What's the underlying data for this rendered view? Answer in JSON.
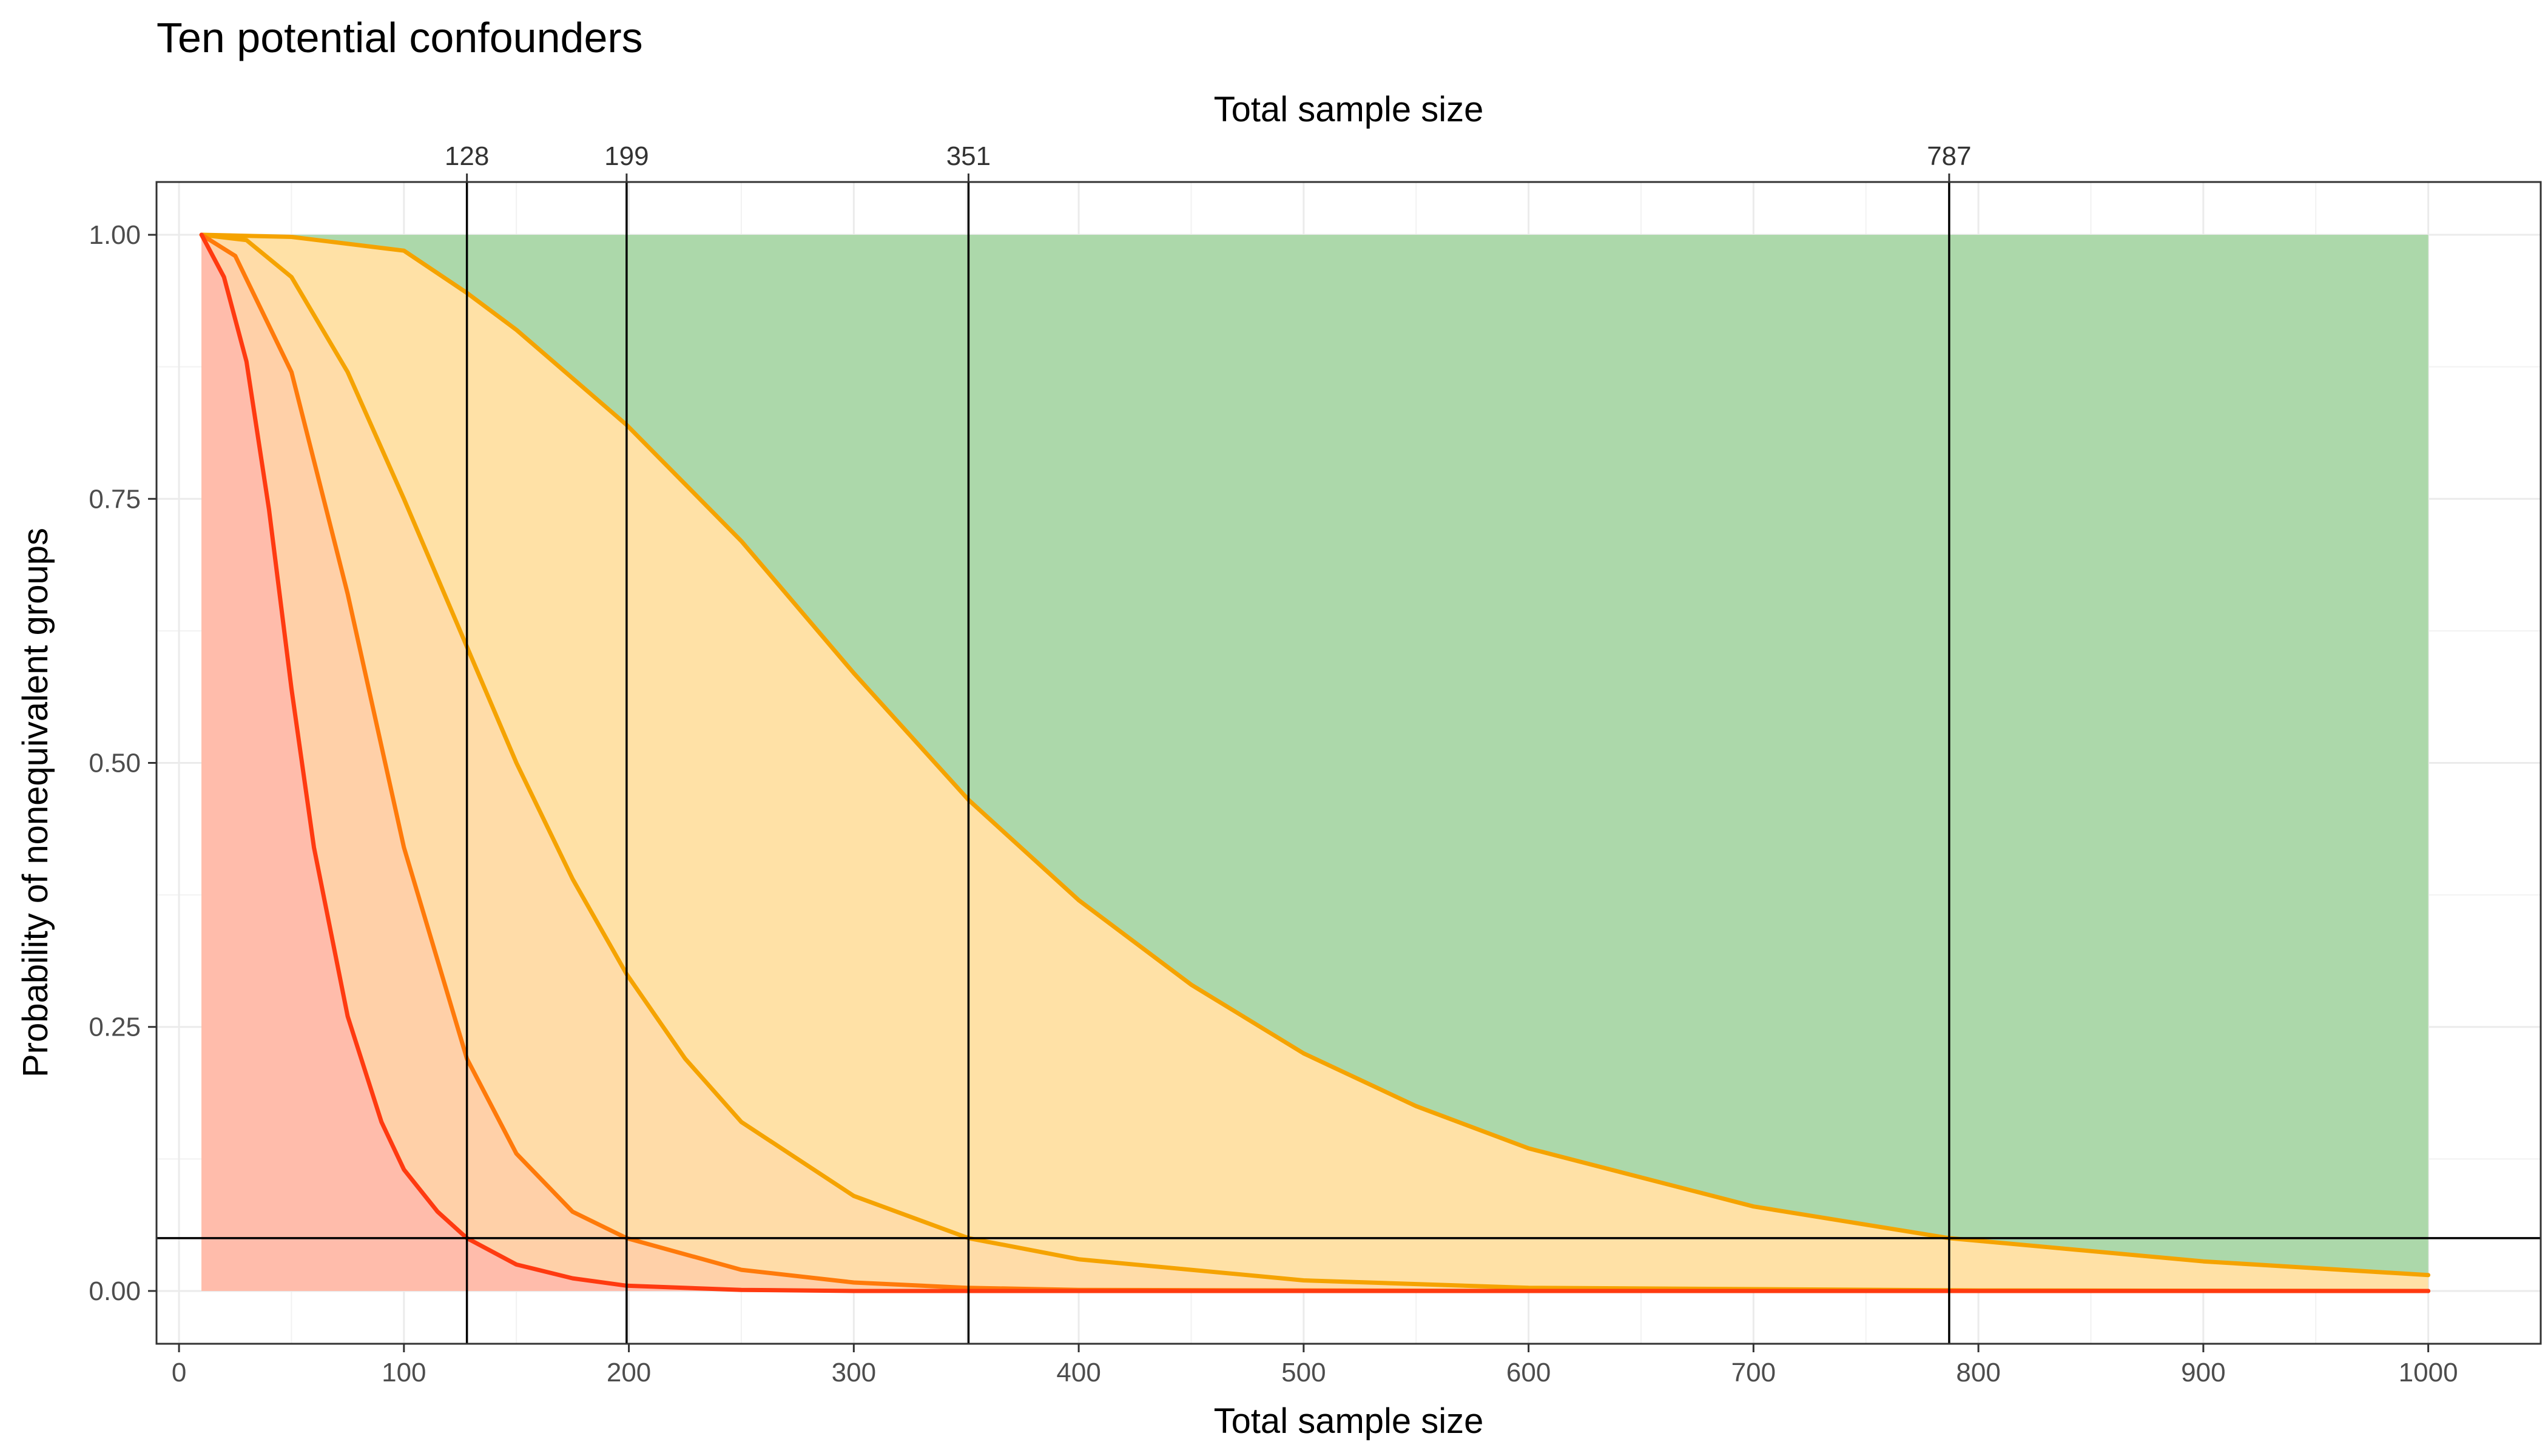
{
  "chart_data": {
    "type": "area",
    "title": "Ten potential confounders",
    "xlabel": "Total sample size",
    "ylabel": "Probability of nonequivalent groups",
    "secondary_xlabel": "Total sample size",
    "xlim": [
      -10,
      1050
    ],
    "ylim": [
      -0.05,
      1.05
    ],
    "x_ticks": [
      0,
      100,
      200,
      300,
      400,
      500,
      600,
      700,
      800,
      900,
      1000
    ],
    "x_tick_labels": [
      "0",
      "100",
      "200",
      "300",
      "400",
      "500",
      "600",
      "700",
      "800",
      "900",
      "1000"
    ],
    "y_ticks": [
      0,
      0.25,
      0.5,
      0.75,
      1
    ],
    "y_tick_labels": [
      "0.00",
      "0.25",
      "0.50",
      "0.75",
      "1.00"
    ],
    "grid": true,
    "hline": 0.05,
    "vlines": [
      128,
      199,
      351,
      787
    ],
    "vline_labels": [
      "128",
      "199",
      "351",
      "787"
    ],
    "background_region": {
      "x": [
        10,
        1000
      ],
      "y": [
        0,
        1
      ],
      "color": "#acd8aa"
    },
    "series": [
      {
        "color": "#f5a300",
        "fill": "#ffe1a6",
        "x": [
          10,
          50,
          100,
          128,
          150,
          199,
          250,
          300,
          351,
          400,
          450,
          500,
          550,
          600,
          700,
          787,
          900,
          1000
        ],
        "values": [
          1.0,
          0.998,
          0.985,
          0.945,
          0.91,
          0.82,
          0.71,
          0.585,
          0.465,
          0.37,
          0.29,
          0.225,
          0.175,
          0.135,
          0.08,
          0.05,
          0.028,
          0.015
        ]
      },
      {
        "color": "#f5a300",
        "fill": "#ffdca8",
        "x": [
          10,
          30,
          50,
          75,
          100,
          128,
          150,
          175,
          199,
          225,
          250,
          300,
          351,
          400,
          500,
          600,
          800,
          1000
        ],
        "values": [
          1.0,
          0.995,
          0.96,
          0.87,
          0.75,
          0.61,
          0.5,
          0.39,
          0.3,
          0.22,
          0.16,
          0.09,
          0.05,
          0.03,
          0.01,
          0.003,
          0.0005,
          0.0
        ]
      },
      {
        "color": "#ff7a0a",
        "fill": "#ffd0a8",
        "x": [
          10,
          25,
          50,
          75,
          100,
          128,
          150,
          175,
          199,
          250,
          300,
          350,
          400,
          600,
          800,
          1000
        ],
        "values": [
          1.0,
          0.98,
          0.87,
          0.66,
          0.42,
          0.22,
          0.13,
          0.075,
          0.05,
          0.02,
          0.008,
          0.003,
          0.001,
          0.0,
          0.0,
          0.0
        ]
      },
      {
        "color": "#ff3a10",
        "fill": "#ffbcab",
        "x": [
          10,
          20,
          30,
          40,
          50,
          60,
          75,
          90,
          100,
          115,
          128,
          150,
          175,
          199,
          250,
          300,
          400,
          600,
          800,
          1000
        ],
        "values": [
          1.0,
          0.96,
          0.88,
          0.74,
          0.57,
          0.42,
          0.26,
          0.16,
          0.115,
          0.075,
          0.05,
          0.025,
          0.012,
          0.005,
          0.001,
          0.0,
          0.0,
          0.0,
          0.0,
          0.0
        ]
      }
    ]
  }
}
